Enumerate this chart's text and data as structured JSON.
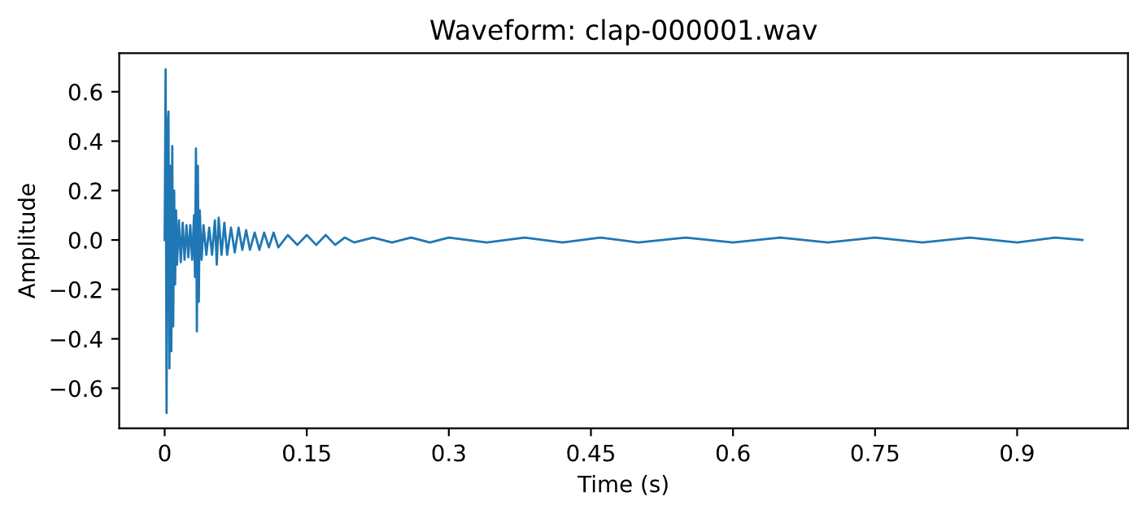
{
  "chart_data": {
    "type": "line",
    "title": "Waveform: clap-000001.wav",
    "xlabel": "Time (s)",
    "ylabel": "Amplitude",
    "series": [
      {
        "color": "#1f77b4",
        "x": [
          0,
          0.001,
          0.002,
          0.003,
          0.004,
          0.005,
          0.006,
          0.007,
          0.008,
          0.009,
          0.01,
          0.011,
          0.012,
          0.013,
          0.015,
          0.017,
          0.019,
          0.021,
          0.023,
          0.025,
          0.027,
          0.029,
          0.031,
          0.032,
          0.033,
          0.034,
          0.035,
          0.036,
          0.037,
          0.039,
          0.041,
          0.044,
          0.047,
          0.05,
          0.053,
          0.055,
          0.057,
          0.06,
          0.063,
          0.066,
          0.07,
          0.074,
          0.078,
          0.082,
          0.086,
          0.09,
          0.095,
          0.1,
          0.105,
          0.11,
          0.115,
          0.12,
          0.13,
          0.14,
          0.15,
          0.16,
          0.17,
          0.18,
          0.19,
          0.2,
          0.22,
          0.24,
          0.26,
          0.28,
          0.3,
          0.34,
          0.38,
          0.42,
          0.46,
          0.5,
          0.55,
          0.6,
          0.65,
          0.7,
          0.75,
          0.8,
          0.85,
          0.9,
          0.94,
          0.969
        ],
        "values": [
          0,
          0.69,
          -0.7,
          0.45,
          0.52,
          -0.52,
          0.3,
          -0.45,
          0.38,
          -0.35,
          0.2,
          -0.18,
          0.12,
          -0.1,
          0.08,
          -0.09,
          0.07,
          -0.08,
          0.06,
          -0.07,
          0.06,
          -0.08,
          0.1,
          -0.15,
          0.37,
          -0.37,
          0.3,
          -0.25,
          0.12,
          -0.08,
          0.06,
          -0.06,
          0.05,
          -0.06,
          0.08,
          -0.1,
          0.09,
          -0.06,
          0.07,
          -0.06,
          0.05,
          -0.05,
          0.05,
          -0.04,
          0.04,
          -0.04,
          0.03,
          -0.04,
          0.03,
          -0.03,
          0.03,
          -0.03,
          0.02,
          -0.02,
          0.02,
          -0.02,
          0.02,
          -0.02,
          0.01,
          -0.01,
          0.01,
          -0.01,
          0.01,
          -0.01,
          0.01,
          -0.01,
          0.01,
          -0.01,
          0.01,
          -0.01,
          0.01,
          -0.01,
          0.01,
          -0.01,
          0.01,
          -0.01,
          0.01,
          -0.01,
          0.01,
          0
        ]
      }
    ],
    "xlim": [
      -0.048,
      1.017
    ],
    "xticks": [
      0,
      0.15,
      0.3,
      0.45,
      0.6,
      0.75,
      0.9
    ],
    "ylim": [
      -0.762,
      0.756
    ],
    "yticks": [
      {
        "value": -0.6,
        "label": "−0.6"
      },
      {
        "value": -0.4,
        "label": "−0.4"
      },
      {
        "value": -0.2,
        "label": "−0.2"
      },
      {
        "value": 0,
        "label": "0.0"
      },
      0.2,
      0.4,
      0.6
    ],
    "grid": false,
    "legend": false
  }
}
